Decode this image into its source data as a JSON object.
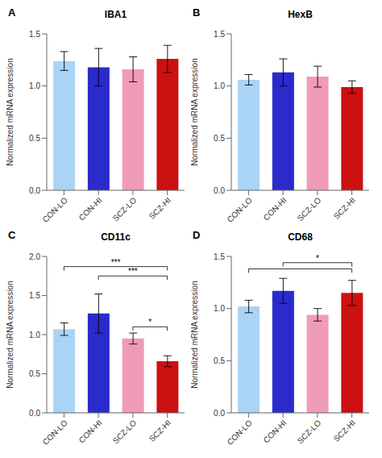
{
  "chart_data": [
    {
      "type": "bar",
      "title": "IBA1",
      "ylabel": "Normalized mRNA expression",
      "categories": [
        "CON-LO",
        "CON-HI",
        "SCZ-LO",
        "SCZ-HI"
      ],
      "values": [
        1.24,
        1.18,
        1.16,
        1.26
      ],
      "errors": [
        0.09,
        0.18,
        0.12,
        0.13
      ],
      "colors": [
        "#aad4f5",
        "#2b2bcc",
        "#f09aba",
        "#cc1111"
      ],
      "ylim": [
        0,
        1.5
      ],
      "yticks": [
        {
          "value": 0,
          "label": "0.0"
        },
        0.5,
        {
          "value": 1,
          "label": "1.0"
        },
        1.5
      ],
      "grid": false,
      "annotations": [
        {
          "text": "A"
        }
      ]
    },
    {
      "type": "bar",
      "title": "HexB",
      "ylabel": "Normalized mRNA expression",
      "categories": [
        "CON-LO",
        "CON-HI",
        "SCZ-LO",
        "SCZ-HI"
      ],
      "values": [
        1.06,
        1.13,
        1.09,
        0.99
      ],
      "errors": [
        0.05,
        0.13,
        0.1,
        0.06
      ],
      "colors": [
        "#aad4f5",
        "#2b2bcc",
        "#f09aba",
        "#cc1111"
      ],
      "ylim": [
        0,
        1.5
      ],
      "yticks": [
        {
          "value": 0,
          "label": "0.0"
        },
        0.5,
        {
          "value": 1,
          "label": "1.0"
        },
        1.5
      ],
      "grid": false,
      "annotations": [
        {
          "text": "B"
        }
      ]
    },
    {
      "type": "bar",
      "title": "CD11c",
      "ylabel": "Normalized mRNA expression",
      "categories": [
        "CON-LO",
        "CON-HI",
        "SCZ-LO",
        "SCZ-HI"
      ],
      "values": [
        1.07,
        1.27,
        0.95,
        0.66
      ],
      "errors": [
        0.08,
        0.25,
        0.07,
        0.07
      ],
      "colors": [
        "#aad4f5",
        "#2b2bcc",
        "#f09aba",
        "#cc1111"
      ],
      "ylim": [
        0,
        2.0
      ],
      "yticks": [
        {
          "value": 0,
          "label": "0.0"
        },
        0.5,
        {
          "value": 1,
          "label": "1.0"
        },
        1.5,
        {
          "value": 2,
          "label": "2.0"
        }
      ],
      "grid": false,
      "annotations": [
        {
          "text": "C"
        },
        {
          "from": "CON-LO",
          "to": "SCZ-HI",
          "y": 1.87,
          "text": "***"
        },
        {
          "from": "CON-HI",
          "to": "SCZ-HI",
          "y": 1.75,
          "text": "***"
        },
        {
          "from": "SCZ-LO",
          "to": "SCZ-HI",
          "y": 1.1,
          "text": "*"
        }
      ]
    },
    {
      "type": "bar",
      "title": "CD68",
      "ylabel": "Normalized mRNA expression",
      "categories": [
        "CON-LO",
        "CON-HI",
        "SCZ-LO",
        "SCZ-HI"
      ],
      "values": [
        1.02,
        1.17,
        0.94,
        1.15
      ],
      "errors": [
        0.06,
        0.12,
        0.06,
        0.12
      ],
      "colors": [
        "#aad4f5",
        "#2b2bcc",
        "#f09aba",
        "#cc1111"
      ],
      "ylim": [
        0,
        1.5
      ],
      "yticks": [
        {
          "value": 0,
          "label": "0.0"
        },
        0.5,
        {
          "value": 1,
          "label": "1.0"
        },
        1.5
      ],
      "grid": false,
      "annotations": [
        {
          "text": "D"
        },
        {
          "from": "CON-LO",
          "to": "SCZ-HI",
          "y": 1.38
        },
        {
          "from": "CON-HI",
          "to": "SCZ-HI",
          "y": 1.44,
          "text": "*"
        }
      ]
    }
  ]
}
